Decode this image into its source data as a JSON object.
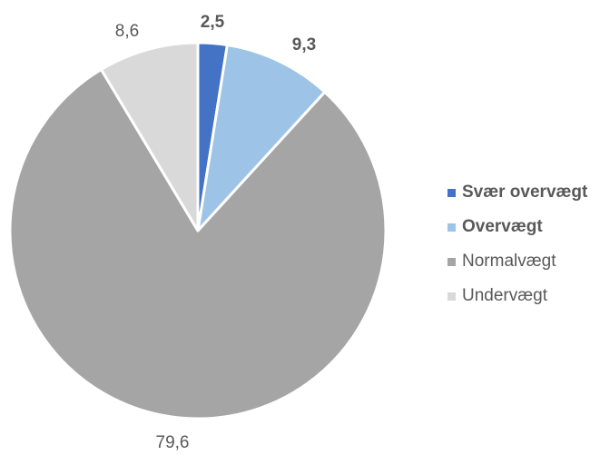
{
  "chart_data": {
    "type": "pie",
    "legend_position": "right",
    "series": [
      {
        "name": "Svær overvægt",
        "value": 2.5,
        "label": "2,5",
        "color": "#4472C4",
        "bold": true
      },
      {
        "name": "Overvægt",
        "value": 9.3,
        "label": "9,3",
        "color": "#9DC3E6",
        "bold": true
      },
      {
        "name": "Normalvægt",
        "value": 79.6,
        "label": "79,6",
        "color": "#A5A5A5",
        "bold": false
      },
      {
        "name": "Undervægt",
        "value": 8.6,
        "label": "8,6",
        "color": "#D9D9D9",
        "bold": false
      }
    ]
  }
}
